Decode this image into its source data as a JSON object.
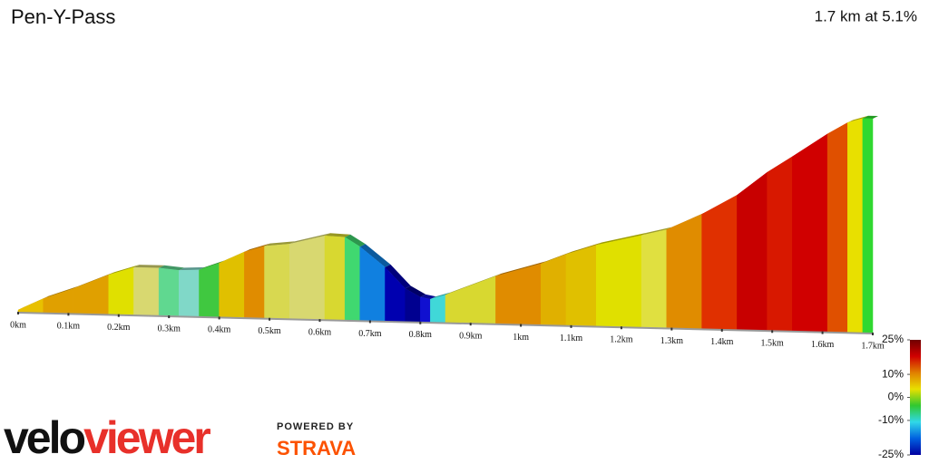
{
  "chart_data": {
    "type": "profile",
    "title": "Pen-Y-Pass",
    "subtitle": "1.7 km at 5.1%",
    "x": [
      0,
      0.05,
      0.11,
      0.18,
      0.23,
      0.28,
      0.32,
      0.36,
      0.4,
      0.45,
      0.49,
      0.54,
      0.61,
      0.65,
      0.68,
      0.73,
      0.77,
      0.8,
      0.82,
      0.85,
      0.95,
      1.04,
      1.09,
      1.15,
      1.24,
      1.29,
      1.36,
      1.43,
      1.49,
      1.54,
      1.61,
      1.65,
      1.68,
      1.7
    ],
    "values": [
      3,
      16,
      28,
      44,
      53,
      53,
      51,
      52,
      60,
      73,
      80,
      83,
      93,
      92,
      82,
      60,
      37,
      28,
      26,
      31,
      53,
      68,
      79,
      90,
      102,
      109,
      127,
      149,
      175,
      193,
      219,
      232,
      237,
      237
    ],
    "colors": [
      "#e8c000",
      "#e0a000",
      "#e0a000",
      "#e0e000",
      "#d8d870",
      "#60d890",
      "#80d8c8",
      "#40c840",
      "#e0c000",
      "#e08c00",
      "#d8d850",
      "#d8d870",
      "#d8d830",
      "#40d870",
      "#1080e0",
      "#0000b0",
      "#000090",
      "#1010d0",
      "#40d8d8",
      "#d8d830",
      "#e08c00",
      "#e0b000",
      "#e0c000",
      "#e0e000",
      "#e0e040",
      "#e08c00",
      "#e03000",
      "#c80000",
      "#d81800",
      "#d00000",
      "#e05000",
      "#e8e000",
      "#30d830"
    ],
    "xlim": [
      0,
      1.7
    ],
    "xticks": [
      {
        "value": 0,
        "label": "0km"
      },
      {
        "value": 0.1,
        "label": "0.1km"
      },
      {
        "value": 0.2,
        "label": "0.2km"
      },
      {
        "value": 0.3,
        "label": "0.3km"
      },
      {
        "value": 0.4,
        "label": "0.4km"
      },
      {
        "value": 0.5,
        "label": "0.5km"
      },
      {
        "value": 0.6,
        "label": "0.6km"
      },
      {
        "value": 0.7,
        "label": "0.7km"
      },
      {
        "value": 0.8,
        "label": "0.8km"
      },
      {
        "value": 0.9,
        "label": "0.9km"
      },
      {
        "value": 1,
        "label": "1km"
      },
      {
        "value": 1.1,
        "label": "1.1km"
      },
      {
        "value": 1.2,
        "label": "1.2km"
      },
      {
        "value": 1.3,
        "label": "1.3km"
      },
      {
        "value": 1.4,
        "label": "1.4km"
      },
      {
        "value": 1.5,
        "label": "1.5km"
      },
      {
        "value": 1.6,
        "label": "1.6km"
      },
      {
        "value": 1.7,
        "label": "1.7km"
      }
    ],
    "colorbar": {
      "lim": [
        -25,
        25
      ],
      "ticks": [
        {
          "value": 25,
          "label": "25%"
        },
        {
          "value": 10,
          "label": "10%"
        },
        {
          "value": 0,
          "label": "0%"
        },
        {
          "value": -10,
          "label": "-10%"
        },
        {
          "value": -25,
          "label": "-25%"
        }
      ],
      "colors": [
        "#0000a0",
        "#0060e0",
        "#30d8e8",
        "#30c830",
        "#e8e000",
        "#e08000",
        "#d00000",
        "#700000"
      ]
    }
  },
  "branding": {
    "logo_part1": "velo",
    "logo_part2": "viewer",
    "powered": "POWERED BY",
    "strava": "STRAVA"
  }
}
